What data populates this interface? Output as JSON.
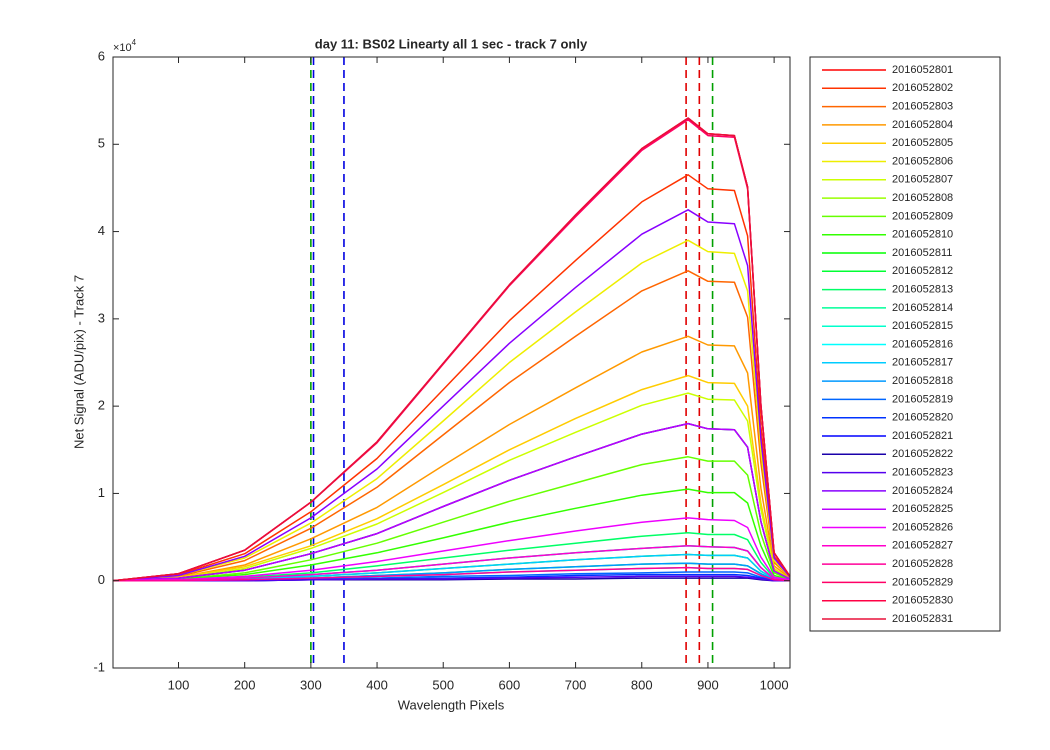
{
  "chart_data": {
    "type": "line",
    "title": "day 11: BS02   Linearty all 1 sec - track 7 only",
    "xlabel": "Wavelength Pixels",
    "ylabel": "Net Signal (ADU/pix) - Track 7",
    "y_multiplier": {
      "base": "×10",
      "exponent": "4"
    },
    "xlim": [
      1,
      1024
    ],
    "ylim": [
      -1,
      6
    ],
    "xticks": [
      100,
      200,
      300,
      400,
      500,
      600,
      700,
      800,
      900,
      1000
    ],
    "yticks": [
      -1,
      0,
      1,
      2,
      3,
      4,
      5,
      6
    ],
    "grid": false,
    "legend": "outside-right",
    "vlines": [
      {
        "x": 300,
        "color": "#00a000"
      },
      {
        "x": 304,
        "color": "#0000e0"
      },
      {
        "x": 350,
        "color": "#0000e0"
      },
      {
        "x": 867,
        "color": "#e00000"
      },
      {
        "x": 887,
        "color": "#e00000"
      },
      {
        "x": 907,
        "color": "#00a000"
      }
    ],
    "x": [
      1,
      100,
      200,
      300,
      400,
      500,
      600,
      700,
      800,
      870,
      900,
      940,
      960,
      980,
      1000,
      1024
    ],
    "series": [
      {
        "name": "2016052801",
        "color": "#ff0000",
        "values": [
          0,
          0.08,
          0.35,
          0.9,
          1.59,
          2.49,
          3.39,
          4.19,
          4.95,
          5.3,
          5.12,
          5.1,
          4.51,
          2.01,
          0.32,
          0.05
        ]
      },
      {
        "name": "2016052802",
        "color": "#ff3300",
        "values": [
          0,
          0.07,
          0.31,
          0.79,
          1.4,
          2.19,
          2.98,
          3.67,
          4.34,
          4.65,
          4.49,
          4.47,
          3.95,
          1.77,
          0.28,
          0.05
        ]
      },
      {
        "name": "2016052803",
        "color": "#ff6600",
        "values": [
          0,
          0.05,
          0.23,
          0.6,
          1.07,
          1.67,
          2.27,
          2.8,
          3.32,
          3.55,
          3.43,
          3.42,
          3.02,
          1.35,
          0.21,
          0.04
        ]
      },
      {
        "name": "2016052804",
        "color": "#ff9900",
        "values": [
          0,
          0.04,
          0.18,
          0.48,
          0.84,
          1.32,
          1.79,
          2.21,
          2.62,
          2.8,
          2.7,
          2.69,
          2.38,
          1.06,
          0.17,
          0.03
        ]
      },
      {
        "name": "2016052805",
        "color": "#ffcc00",
        "values": [
          0,
          0.04,
          0.16,
          0.4,
          0.71,
          1.1,
          1.5,
          1.86,
          2.19,
          2.35,
          2.27,
          2.26,
          2.0,
          0.89,
          0.14,
          0.02
        ]
      },
      {
        "name": "2016052806",
        "color": "#eeee00",
        "values": [
          0,
          0.06,
          0.26,
          0.66,
          1.17,
          1.83,
          2.5,
          3.08,
          3.64,
          3.9,
          3.77,
          3.75,
          3.32,
          1.48,
          0.23,
          0.04
        ]
      },
      {
        "name": "2016052807",
        "color": "#ccff00",
        "values": [
          0,
          0.03,
          0.14,
          0.37,
          0.65,
          1.01,
          1.38,
          1.7,
          2.01,
          2.15,
          2.08,
          2.07,
          1.83,
          0.82,
          0.13,
          0.02
        ]
      },
      {
        "name": "2016052808",
        "color": "#99ff00",
        "values": [
          0,
          0.03,
          0.12,
          0.31,
          0.54,
          0.85,
          1.15,
          1.42,
          1.68,
          1.8,
          1.74,
          1.73,
          1.53,
          0.68,
          0.11,
          0.02
        ]
      },
      {
        "name": "2016052809",
        "color": "#66ff00",
        "values": [
          0,
          0.02,
          0.09,
          0.24,
          0.43,
          0.67,
          0.91,
          1.12,
          1.33,
          1.42,
          1.37,
          1.37,
          1.21,
          0.54,
          0.09,
          0.01
        ]
      },
      {
        "name": "2016052810",
        "color": "#33ff00",
        "values": [
          0,
          0.02,
          0.07,
          0.18,
          0.32,
          0.49,
          0.67,
          0.83,
          0.98,
          1.05,
          1.01,
          1.01,
          0.89,
          0.4,
          0.06,
          0.01
        ]
      },
      {
        "name": "2016052811",
        "color": "#00ff00",
        "values": [
          0,
          0,
          0.02,
          0.05,
          0.09,
          0.14,
          0.19,
          0.24,
          0.28,
          0.3,
          0.29,
          0.29,
          0.26,
          0.11,
          0.02,
          0
        ]
      },
      {
        "name": "2016052812",
        "color": "#00ff33",
        "values": [
          0,
          0,
          0.01,
          0.03,
          0.06,
          0.09,
          0.13,
          0.16,
          0.19,
          0.2,
          0.19,
          0.19,
          0.17,
          0.08,
          0.01,
          0
        ]
      },
      {
        "name": "2016052813",
        "color": "#00ff66",
        "values": [
          0,
          0.01,
          0.04,
          0.09,
          0.17,
          0.26,
          0.35,
          0.43,
          0.51,
          0.55,
          0.53,
          0.53,
          0.47,
          0.21,
          0.03,
          0.01
        ]
      },
      {
        "name": "2016052814",
        "color": "#00ff99",
        "values": [
          0,
          0.01,
          0.03,
          0.07,
          0.12,
          0.19,
          0.26,
          0.32,
          0.37,
          0.4,
          0.39,
          0.38,
          0.34,
          0.15,
          0.02,
          0
        ]
      },
      {
        "name": "2016052815",
        "color": "#00ffcc",
        "values": [
          0,
          0,
          0.01,
          0.03,
          0.05,
          0.07,
          0.1,
          0.12,
          0.14,
          0.15,
          0.14,
          0.14,
          0.13,
          0.06,
          0.01,
          0
        ]
      },
      {
        "name": "2016052816",
        "color": "#00ffff",
        "values": [
          0,
          0.01,
          0.03,
          0.07,
          0.12,
          0.19,
          0.26,
          0.32,
          0.37,
          0.4,
          0.39,
          0.38,
          0.34,
          0.15,
          0.02,
          0
        ]
      },
      {
        "name": "2016052817",
        "color": "#00ccff",
        "values": [
          0,
          0,
          0.02,
          0.05,
          0.09,
          0.14,
          0.19,
          0.24,
          0.28,
          0.3,
          0.29,
          0.29,
          0.26,
          0.11,
          0.02,
          0
        ]
      },
      {
        "name": "2016052818",
        "color": "#0099ff",
        "values": [
          0,
          0,
          0.01,
          0.03,
          0.06,
          0.09,
          0.13,
          0.16,
          0.19,
          0.2,
          0.19,
          0.19,
          0.17,
          0.08,
          0.01,
          0
        ]
      },
      {
        "name": "2016052819",
        "color": "#0066ff",
        "values": [
          0,
          0,
          0.01,
          0.02,
          0.03,
          0.05,
          0.06,
          0.08,
          0.09,
          0.1,
          0.1,
          0.1,
          0.09,
          0.04,
          0.01,
          0
        ]
      },
      {
        "name": "2016052820",
        "color": "#0033ff",
        "values": [
          0,
          0,
          0,
          0.01,
          0.02,
          0.03,
          0.04,
          0.06,
          0.07,
          0.07,
          0.07,
          0.07,
          0.06,
          0.03,
          0,
          0
        ]
      },
      {
        "name": "2016052821",
        "color": "#0000ff",
        "values": [
          0,
          0.03,
          0.12,
          0.31,
          0.54,
          0.85,
          1.15,
          1.42,
          1.68,
          1.8,
          1.74,
          1.73,
          1.53,
          0.68,
          0.11,
          0.02
        ]
      },
      {
        "name": "2016052822",
        "color": "#1a00aa",
        "values": [
          0,
          0,
          0,
          0.01,
          0.01,
          0.01,
          0.02,
          0.02,
          0.03,
          0.03,
          0.03,
          0.03,
          0.03,
          0.01,
          0,
          0
        ]
      },
      {
        "name": "2016052823",
        "color": "#5500ee",
        "values": [
          0,
          0,
          0,
          0.01,
          0.02,
          0.02,
          0.03,
          0.04,
          0.05,
          0.05,
          0.05,
          0.05,
          0.04,
          0.02,
          0,
          0
        ]
      },
      {
        "name": "2016052824",
        "color": "#8800ff",
        "values": [
          0,
          0.06,
          0.28,
          0.72,
          1.28,
          2.0,
          2.72,
          3.36,
          3.97,
          4.25,
          4.11,
          4.09,
          3.61,
          1.62,
          0.26,
          0.04
        ]
      },
      {
        "name": "2016052825",
        "color": "#bb00ff",
        "values": [
          0,
          0.03,
          0.12,
          0.31,
          0.54,
          0.85,
          1.15,
          1.42,
          1.68,
          1.8,
          1.74,
          1.73,
          1.53,
          0.68,
          0.11,
          0.02
        ]
      },
      {
        "name": "2016052826",
        "color": "#ee00ff",
        "values": [
          0,
          0.01,
          0.05,
          0.12,
          0.22,
          0.34,
          0.46,
          0.57,
          0.67,
          0.72,
          0.7,
          0.69,
          0.61,
          0.27,
          0.04,
          0.01
        ]
      },
      {
        "name": "2016052827",
        "color": "#ff00cc",
        "values": [
          0,
          0.01,
          0.03,
          0.07,
          0.12,
          0.19,
          0.26,
          0.32,
          0.37,
          0.4,
          0.39,
          0.38,
          0.34,
          0.15,
          0.02,
          0
        ]
      },
      {
        "name": "2016052828",
        "color": "#ff0099",
        "values": [
          0,
          0,
          0.01,
          0.03,
          0.05,
          0.07,
          0.1,
          0.12,
          0.14,
          0.15,
          0.14,
          0.14,
          0.13,
          0.06,
          0.01,
          0
        ]
      },
      {
        "name": "2016052829",
        "color": "#ff0066",
        "values": [
          0,
          0.08,
          0.35,
          0.9,
          1.58,
          2.48,
          3.38,
          4.17,
          4.93,
          5.28,
          5.1,
          5.08,
          4.49,
          2.01,
          0.32,
          0.05
        ]
      },
      {
        "name": "2016052830",
        "color": "#ff0044",
        "values": [
          0,
          0.08,
          0.35,
          0.9,
          1.59,
          2.49,
          3.39,
          4.19,
          4.95,
          5.3,
          5.12,
          5.1,
          4.51,
          2.01,
          0.32,
          0.05
        ]
      },
      {
        "name": "2016052831",
        "color": "#e8103a",
        "values": [
          0,
          0.08,
          0.35,
          0.9,
          1.59,
          2.49,
          3.39,
          4.19,
          4.95,
          5.3,
          5.12,
          5.1,
          4.51,
          2.01,
          0.32,
          0.05
        ]
      }
    ]
  }
}
